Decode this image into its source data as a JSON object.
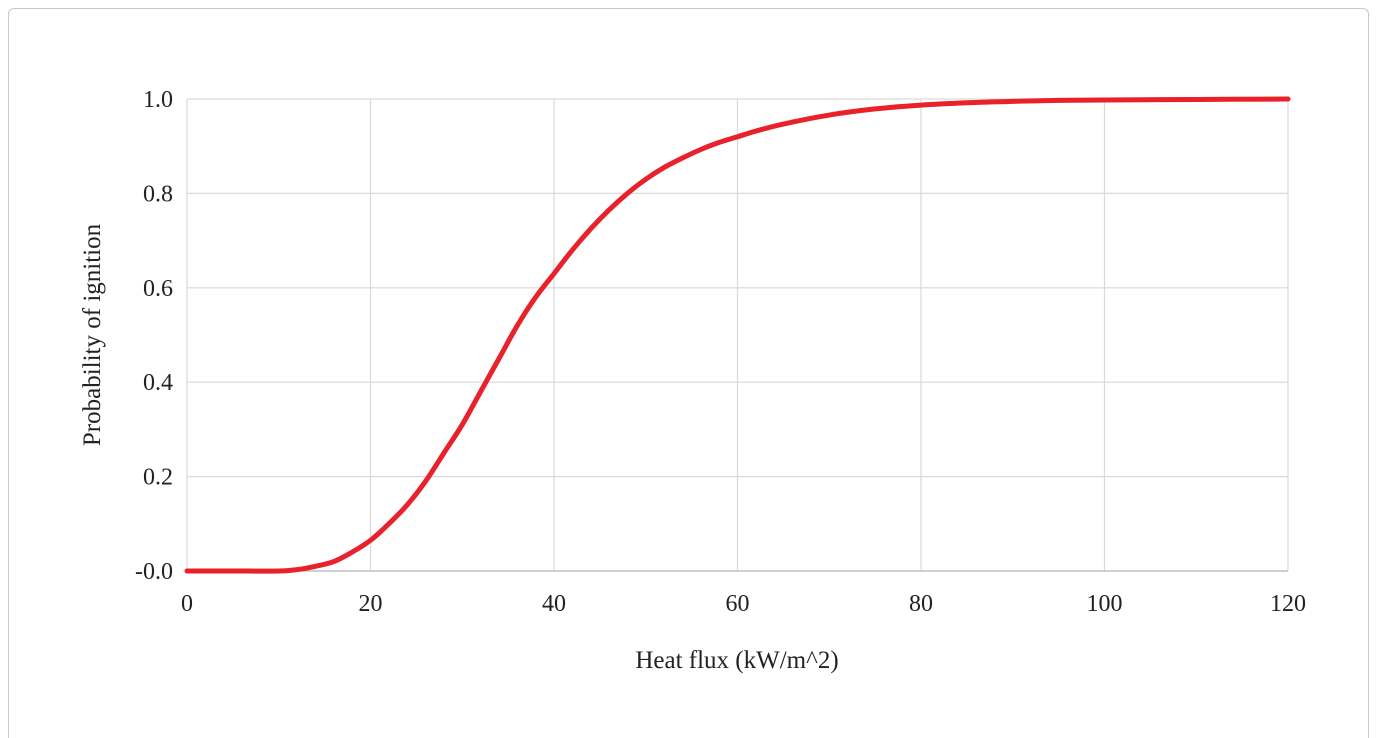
{
  "chart_data": {
    "type": "line",
    "title": "",
    "xlabel": "Heat flux (kW/m^2)",
    "ylabel": "Probability of ignition",
    "xlim": [
      0,
      120
    ],
    "ylim": [
      0,
      1.0
    ],
    "x_ticks": [
      0,
      20,
      40,
      60,
      80,
      100,
      120
    ],
    "x_tick_labels": [
      "0",
      "20",
      "40",
      "60",
      "80",
      "100",
      "120"
    ],
    "y_ticks": [
      0,
      0.2,
      0.4,
      0.6,
      0.8,
      1.0
    ],
    "y_tick_labels": [
      "-0.0",
      "0.2",
      "0.4",
      "0.6",
      "0.8",
      "1.0"
    ],
    "grid": true,
    "legend": "none",
    "series": [
      {
        "color": "#e8212a",
        "x": [
          0,
          5,
          10,
          12,
          14,
          16,
          18,
          20,
          22,
          24,
          26,
          28,
          30,
          32,
          34,
          36,
          38,
          40,
          42,
          44,
          46,
          48,
          50,
          52,
          54,
          56,
          58,
          60,
          62,
          65,
          70,
          75,
          80,
          85,
          90,
          95,
          100,
          110,
          120
        ],
        "y": [
          0,
          0,
          0,
          0.003,
          0.01,
          0.02,
          0.04,
          0.065,
          0.1,
          0.14,
          0.19,
          0.25,
          0.31,
          0.38,
          0.45,
          0.52,
          0.58,
          0.63,
          0.68,
          0.725,
          0.765,
          0.8,
          0.83,
          0.855,
          0.875,
          0.893,
          0.908,
          0.92,
          0.932,
          0.947,
          0.966,
          0.979,
          0.987,
          0.992,
          0.995,
          0.997,
          0.998,
          0.999,
          1.0
        ]
      }
    ]
  }
}
